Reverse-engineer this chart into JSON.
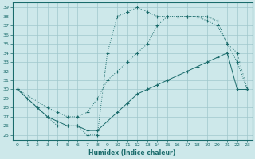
{
  "xlabel": "Humidex (Indice chaleur)",
  "xlim": [
    -0.5,
    23.5
  ],
  "ylim": [
    24.5,
    39.5
  ],
  "yticks": [
    25,
    26,
    27,
    28,
    29,
    30,
    31,
    32,
    33,
    34,
    35,
    36,
    37,
    38,
    39
  ],
  "xticks": [
    0,
    1,
    2,
    3,
    4,
    5,
    6,
    7,
    8,
    9,
    10,
    11,
    12,
    13,
    14,
    15,
    16,
    17,
    18,
    19,
    20,
    21,
    22,
    23
  ],
  "bg_color": "#cde8ea",
  "grid_color": "#a0c8cc",
  "line_color": "#1a6b6b",
  "line1_x": [
    0,
    1,
    2,
    3,
    4,
    5,
    6,
    7,
    8,
    9,
    10,
    11,
    12,
    13,
    14,
    15,
    16,
    17,
    18,
    19,
    20,
    21,
    22,
    23
  ],
  "line1_y": [
    30,
    29,
    28,
    27,
    26,
    26,
    26,
    25,
    25,
    34,
    38,
    38.5,
    39,
    38.5,
    38,
    38,
    38,
    38,
    38,
    38,
    37.5,
    35,
    33,
    30
  ],
  "line2_x": [
    0,
    3,
    4,
    5,
    6,
    7,
    8,
    9,
    10,
    11,
    12,
    13,
    14,
    15,
    16,
    17,
    18,
    19,
    20,
    21,
    22,
    23
  ],
  "line2_y": [
    30,
    28,
    27.5,
    27,
    27,
    27.5,
    29,
    31,
    32,
    33,
    34,
    35,
    37,
    38,
    38,
    38,
    38,
    37.5,
    37,
    35,
    34,
    30
  ],
  "line3_x": [
    0,
    2,
    3,
    4,
    5,
    6,
    7,
    8,
    9,
    10,
    11,
    12,
    13,
    14,
    15,
    16,
    17,
    18,
    19,
    20,
    21,
    22,
    23
  ],
  "line3_y": [
    30,
    28,
    27,
    26.5,
    26,
    26,
    25.5,
    25.5,
    26.5,
    27.5,
    28.5,
    29.5,
    30,
    30.5,
    31,
    31.5,
    32,
    32.5,
    33,
    33.5,
    34,
    30,
    30
  ]
}
